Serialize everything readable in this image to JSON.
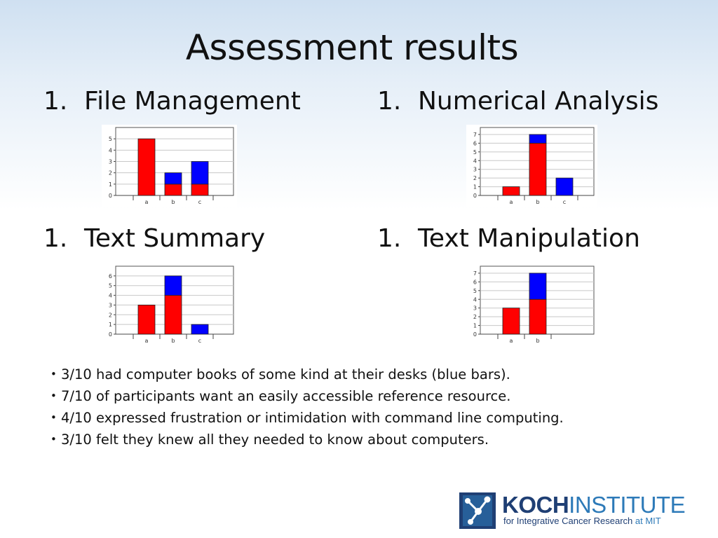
{
  "slide": {
    "title": "Assessment results",
    "headings": [
      {
        "num": "1.",
        "label": "File Management"
      },
      {
        "num": "1.",
        "label": "Numerical Analysis"
      },
      {
        "num": "1.",
        "label": "Text Summary"
      },
      {
        "num": "1.",
        "label": "Text Manipulation"
      }
    ],
    "bullets": [
      "3/10 had computer books of some kind at their desks (blue bars).",
      "7/10 of participants want an easily accessible reference resource.",
      "4/10 expressed frustration or intimidation with command line computing.",
      "3/10 felt they knew all they needed to know about computers."
    ],
    "bullet_glyph": "•"
  },
  "logo": {
    "name_bold": "KOCH",
    "name_light": "INSTITUTE",
    "tagline": "for Integrative Cancer Research",
    "tagline_at": "at MIT",
    "colors": {
      "dark": "#1f3f74",
      "light": "#2d7ab8"
    }
  },
  "colors": {
    "red": "#ff0000",
    "blue": "#0000ff"
  },
  "chart_data": [
    {
      "type": "bar",
      "stacked": true,
      "categories": [
        "a",
        "b",
        "c"
      ],
      "series": [
        {
          "color": "#ff0000",
          "values": [
            5,
            1,
            1
          ]
        },
        {
          "color": "#0000ff",
          "values": [
            0,
            1,
            2
          ]
        }
      ],
      "yticks": [
        "0",
        "1",
        "2",
        "3",
        "4",
        "5"
      ],
      "ylim": [
        0,
        6
      ],
      "grid": true,
      "legend": "none"
    },
    {
      "type": "bar",
      "stacked": true,
      "categories": [
        "a",
        "b",
        "c"
      ],
      "series": [
        {
          "color": "#ff0000",
          "values": [
            1,
            6,
            0
          ]
        },
        {
          "color": "#0000ff",
          "values": [
            0,
            1,
            2
          ]
        }
      ],
      "yticks": [
        "0",
        "1",
        "2",
        "3",
        "4",
        "5",
        "6",
        "7"
      ],
      "ylim": [
        0,
        7.8
      ],
      "grid": true,
      "legend": "none"
    },
    {
      "type": "bar",
      "stacked": true,
      "categories": [
        "a",
        "b",
        "c"
      ],
      "series": [
        {
          "color": "#ff0000",
          "values": [
            3,
            4,
            0
          ]
        },
        {
          "color": "#0000ff",
          "values": [
            0,
            2,
            1
          ]
        }
      ],
      "yticks": [
        "0",
        "1",
        "2",
        "3",
        "4",
        "5",
        "6"
      ],
      "ylim": [
        0,
        7
      ],
      "grid": true,
      "legend": "none"
    },
    {
      "type": "bar",
      "stacked": true,
      "categories": [
        "a",
        "b"
      ],
      "series": [
        {
          "color": "#ff0000",
          "values": [
            3,
            4
          ]
        },
        {
          "color": "#0000ff",
          "values": [
            0,
            3
          ]
        }
      ],
      "yticks": [
        "0",
        "1",
        "2",
        "3",
        "4",
        "5",
        "6",
        "7"
      ],
      "ylim": [
        0,
        7.8
      ],
      "grid": true,
      "legend": "none"
    }
  ]
}
